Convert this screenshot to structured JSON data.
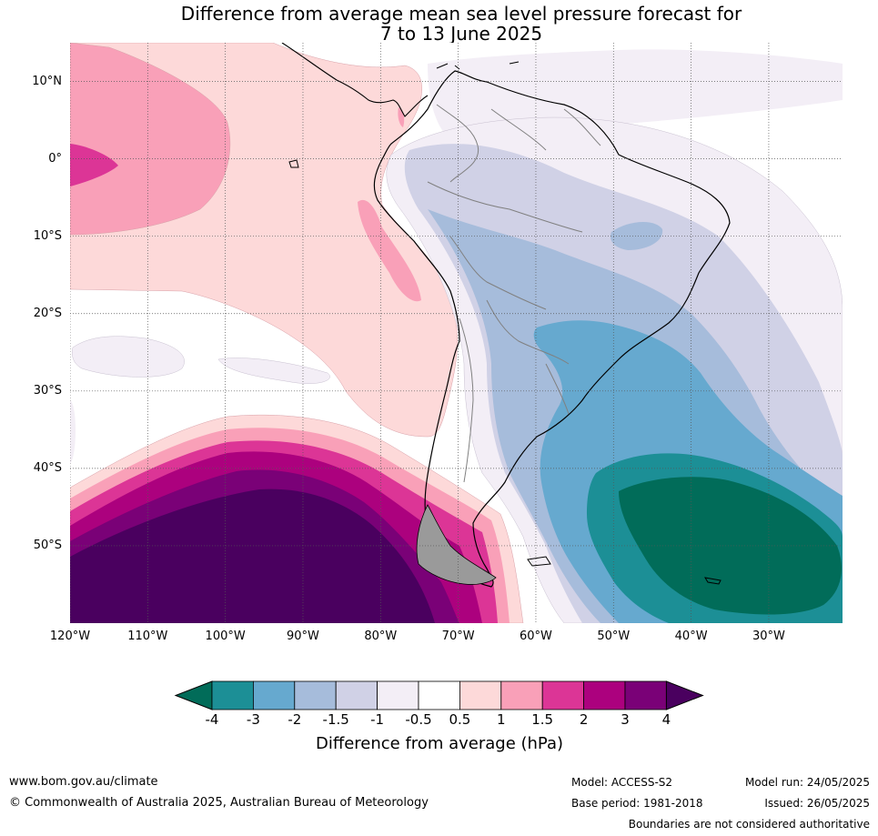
{
  "title_line1": "Difference from average mean sea level pressure forecast for",
  "title_line2": "7 to 13 June 2025",
  "map": {
    "lat_labels": [
      {
        "text": "10°N",
        "lat": 10
      },
      {
        "text": "0°",
        "lat": 0
      },
      {
        "text": "10°S",
        "lat": -10
      },
      {
        "text": "20°S",
        "lat": -20
      },
      {
        "text": "30°S",
        "lat": -30
      },
      {
        "text": "40°S",
        "lat": -40
      },
      {
        "text": "50°S",
        "lat": -50
      }
    ],
    "lon_labels": [
      {
        "text": "120°W",
        "lon": -120
      },
      {
        "text": "110°W",
        "lon": -110
      },
      {
        "text": "100°W",
        "lon": -100
      },
      {
        "text": "90°W",
        "lon": -90
      },
      {
        "text": "80°W",
        "lon": -80
      },
      {
        "text": "70°W",
        "lon": -70
      },
      {
        "text": "60°W",
        "lon": -60
      },
      {
        "text": "50°W",
        "lon": -50
      },
      {
        "text": "40°W",
        "lon": -40
      },
      {
        "text": "30°W",
        "lon": -30
      }
    ],
    "lon_range": [
      -120,
      -20.5
    ],
    "lat_range": [
      -60,
      15
    ],
    "gridlines": true
  },
  "colorbar": {
    "title": "Difference from average (hPa)",
    "ticks": [
      "-4",
      "-3",
      "-2",
      "-1.5",
      "-1",
      "-0.5",
      "0.5",
      "1",
      "1.5",
      "2",
      "3",
      "4"
    ],
    "colors": [
      "#1c8f96",
      "#66a9cf",
      "#a6bcdb",
      "#d0d1e6",
      "#f3eef6",
      "#ffffff",
      "#fdd9d9",
      "#f9a0b8",
      "#dc3596",
      "#ac017e",
      "#7a0177"
    ],
    "under_color": "#016c59",
    "over_color": "#4a005f",
    "extend": "both"
  },
  "footer": {
    "url": "www.bom.gov.au/climate",
    "copyright": "© Commonwealth of Australia 2025, Australian Bureau of Meteorology",
    "model": "Model: ACCESS-S2",
    "base_period": "Base period: 1981-2018",
    "model_run": "Model run: 24/05/2025",
    "issued": "Issued: 26/05/2025",
    "disclaimer": "Boundaries are not considered authoritative"
  }
}
